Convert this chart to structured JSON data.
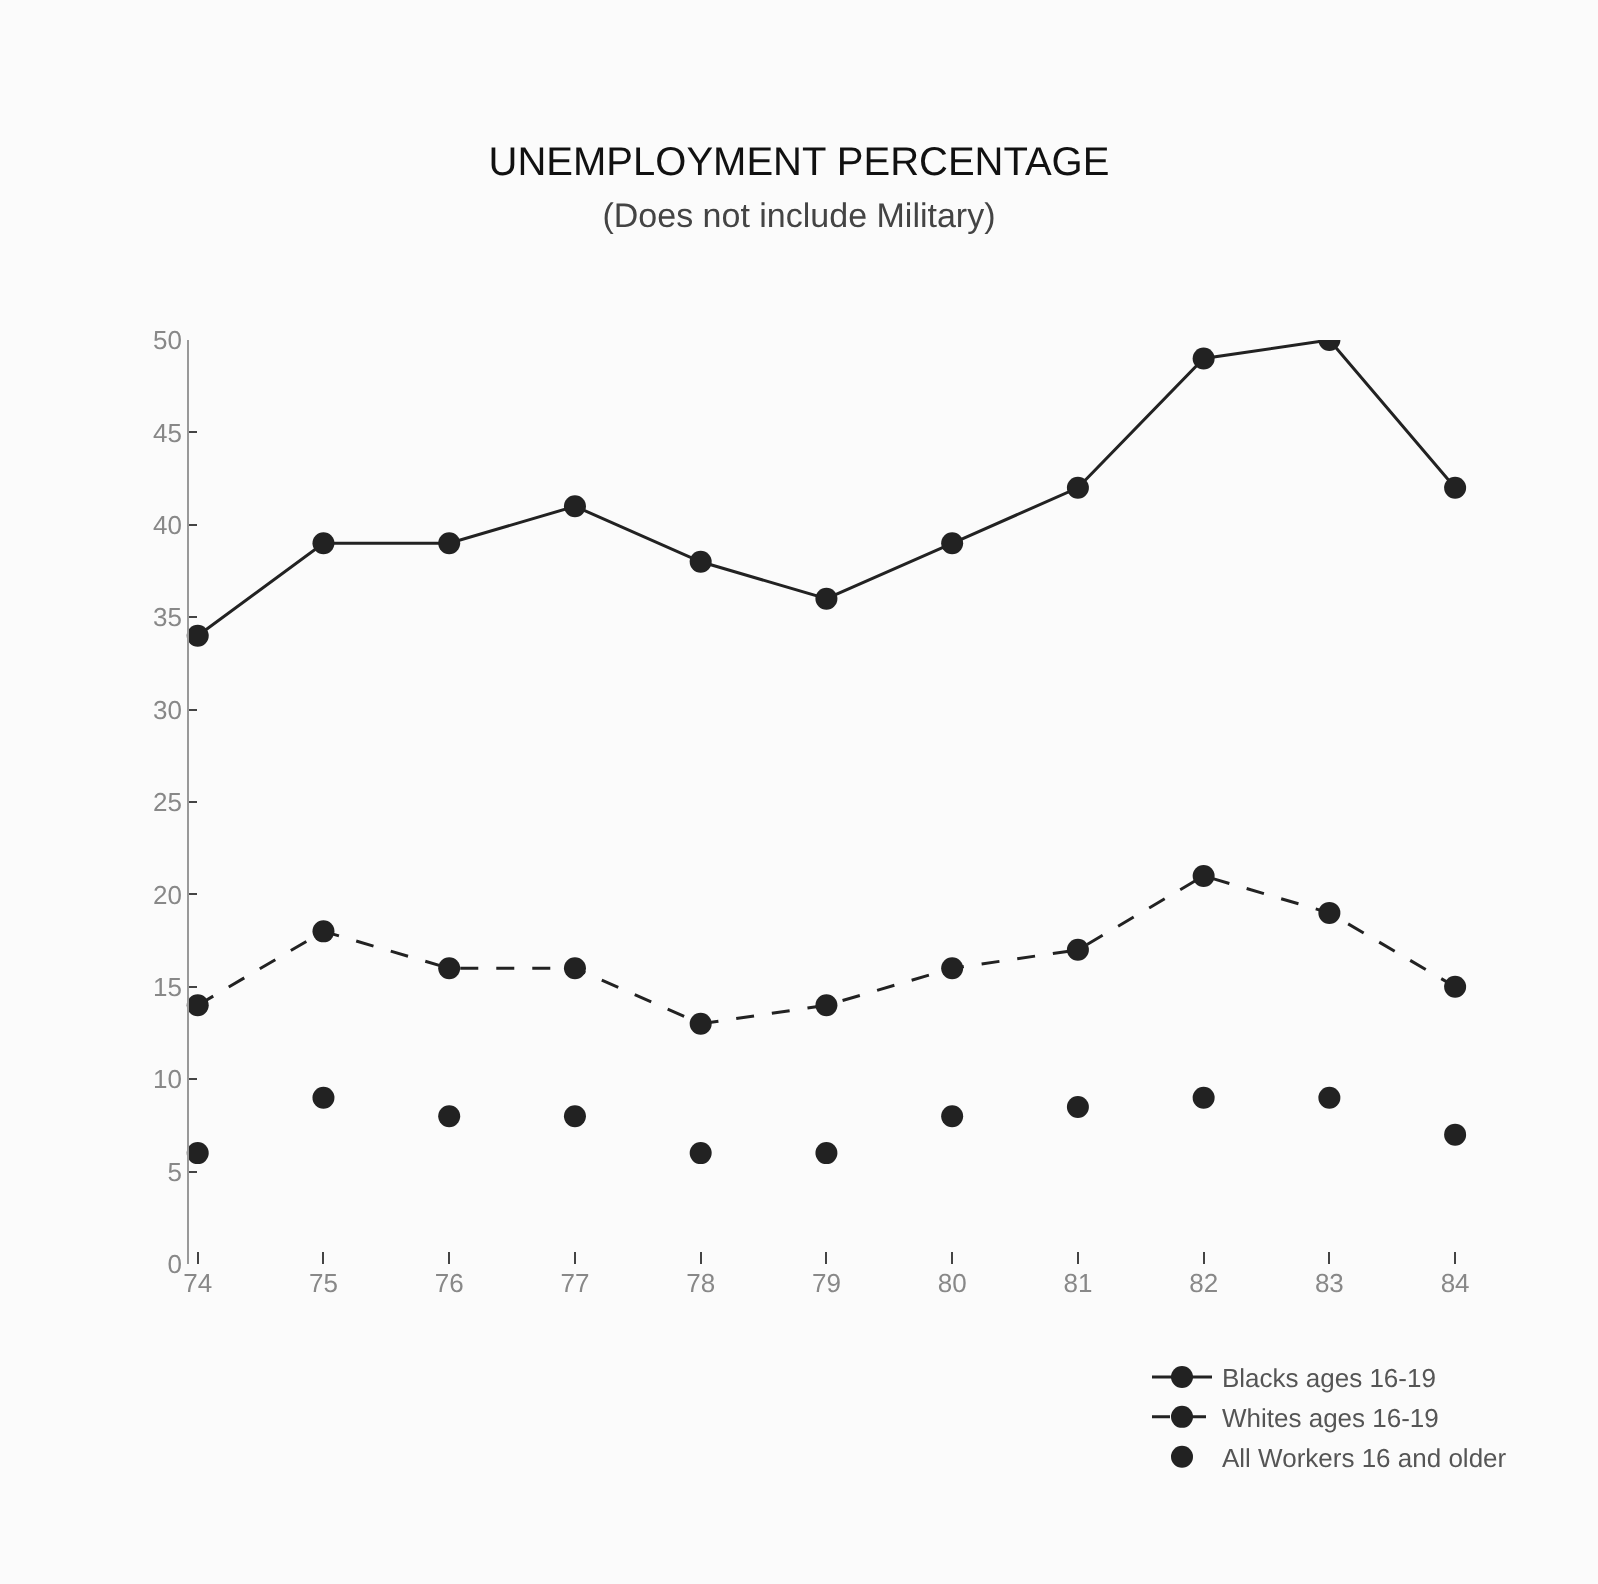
{
  "chart_data": {
    "type": "line",
    "title": "UNEMPLOYMENT PERCENTAGE",
    "subtitle": "(Does not include Military)",
    "categories": [
      "74",
      "75",
      "76",
      "77",
      "78",
      "79",
      "80",
      "81",
      "82",
      "83",
      "84"
    ],
    "series": [
      {
        "name": "Blacks ages 16-19",
        "color": "#222222",
        "line_style": "solid",
        "values": [
          34,
          39,
          39,
          41,
          38,
          36,
          39,
          42,
          49,
          50,
          42
        ]
      },
      {
        "name": "Whites ages 16-19",
        "color": "#222222",
        "line_style": "dashed",
        "values": [
          14,
          18,
          16,
          16,
          13,
          14,
          16,
          17,
          21,
          19,
          15
        ]
      },
      {
        "name": "All Workers 16 and older",
        "type": "scatter",
        "color": "#222222",
        "values": [
          6,
          9,
          8,
          8,
          6,
          6,
          8,
          8.5,
          9,
          9,
          7
        ]
      }
    ],
    "ylim": [
      0,
      50
    ],
    "yticks": [
      0,
      5,
      10,
      15,
      20,
      25,
      30,
      35,
      40,
      45,
      50
    ],
    "legend": "bottom right",
    "marker": "circle"
  }
}
